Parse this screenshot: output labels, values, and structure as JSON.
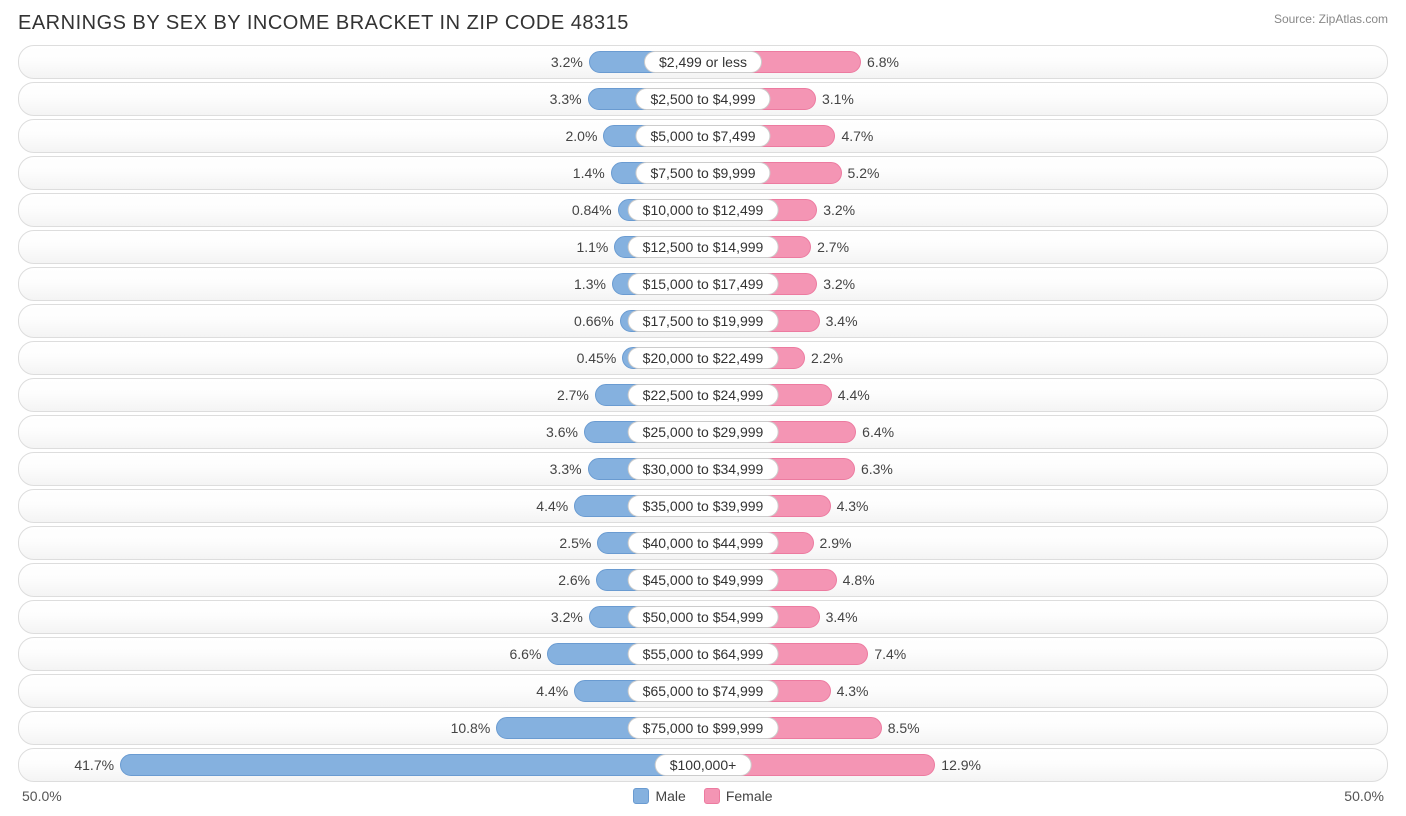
{
  "title": "EARNINGS BY SEX BY INCOME BRACKET IN ZIP CODE 48315",
  "source": "Source: ZipAtlas.com",
  "axis": {
    "left": "50.0%",
    "right": "50.0%",
    "max_percent": 50.0
  },
  "colors": {
    "male_fill": "#85b1df",
    "male_border": "#6a9bd1",
    "female_fill": "#f495b4",
    "female_border": "#ec7ba0",
    "row_border": "#dddddd",
    "text": "#333333",
    "label_border": "#cccccc",
    "label_bg": "#ffffff"
  },
  "legend": {
    "male": "Male",
    "female": "Female"
  },
  "rows": [
    {
      "bracket": "$2,499 or less",
      "male": 3.2,
      "male_label": "3.2%",
      "female": 6.8,
      "female_label": "6.8%"
    },
    {
      "bracket": "$2,500 to $4,999",
      "male": 3.3,
      "male_label": "3.3%",
      "female": 3.1,
      "female_label": "3.1%"
    },
    {
      "bracket": "$5,000 to $7,499",
      "male": 2.0,
      "male_label": "2.0%",
      "female": 4.7,
      "female_label": "4.7%"
    },
    {
      "bracket": "$7,500 to $9,999",
      "male": 1.4,
      "male_label": "1.4%",
      "female": 5.2,
      "female_label": "5.2%"
    },
    {
      "bracket": "$10,000 to $12,499",
      "male": 0.84,
      "male_label": "0.84%",
      "female": 3.2,
      "female_label": "3.2%"
    },
    {
      "bracket": "$12,500 to $14,999",
      "male": 1.1,
      "male_label": "1.1%",
      "female": 2.7,
      "female_label": "2.7%"
    },
    {
      "bracket": "$15,000 to $17,499",
      "male": 1.3,
      "male_label": "1.3%",
      "female": 3.2,
      "female_label": "3.2%"
    },
    {
      "bracket": "$17,500 to $19,999",
      "male": 0.66,
      "male_label": "0.66%",
      "female": 3.4,
      "female_label": "3.4%"
    },
    {
      "bracket": "$20,000 to $22,499",
      "male": 0.45,
      "male_label": "0.45%",
      "female": 2.2,
      "female_label": "2.2%"
    },
    {
      "bracket": "$22,500 to $24,999",
      "male": 2.7,
      "male_label": "2.7%",
      "female": 4.4,
      "female_label": "4.4%"
    },
    {
      "bracket": "$25,000 to $29,999",
      "male": 3.6,
      "male_label": "3.6%",
      "female": 6.4,
      "female_label": "6.4%"
    },
    {
      "bracket": "$30,000 to $34,999",
      "male": 3.3,
      "male_label": "3.3%",
      "female": 6.3,
      "female_label": "6.3%"
    },
    {
      "bracket": "$35,000 to $39,999",
      "male": 4.4,
      "male_label": "4.4%",
      "female": 4.3,
      "female_label": "4.3%"
    },
    {
      "bracket": "$40,000 to $44,999",
      "male": 2.5,
      "male_label": "2.5%",
      "female": 2.9,
      "female_label": "2.9%"
    },
    {
      "bracket": "$45,000 to $49,999",
      "male": 2.6,
      "male_label": "2.6%",
      "female": 4.8,
      "female_label": "4.8%"
    },
    {
      "bracket": "$50,000 to $54,999",
      "male": 3.2,
      "male_label": "3.2%",
      "female": 3.4,
      "female_label": "3.4%"
    },
    {
      "bracket": "$55,000 to $64,999",
      "male": 6.6,
      "male_label": "6.6%",
      "female": 7.4,
      "female_label": "7.4%"
    },
    {
      "bracket": "$65,000 to $74,999",
      "male": 4.4,
      "male_label": "4.4%",
      "female": 4.3,
      "female_label": "4.3%"
    },
    {
      "bracket": "$75,000 to $99,999",
      "male": 10.8,
      "male_label": "10.8%",
      "female": 8.5,
      "female_label": "8.5%"
    },
    {
      "bracket": "$100,000+",
      "male": 41.7,
      "male_label": "41.7%",
      "female": 12.9,
      "female_label": "12.9%"
    }
  ]
}
